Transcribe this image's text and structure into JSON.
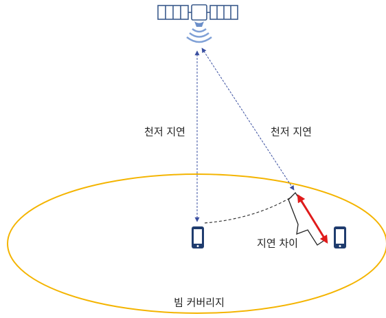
{
  "labels": {
    "nadir_delay_left": "천저 지연",
    "nadir_delay_right": "천저 지연",
    "delay_difference": "지연 차이",
    "beam_coverage": "빔 커버리지"
  }
}
